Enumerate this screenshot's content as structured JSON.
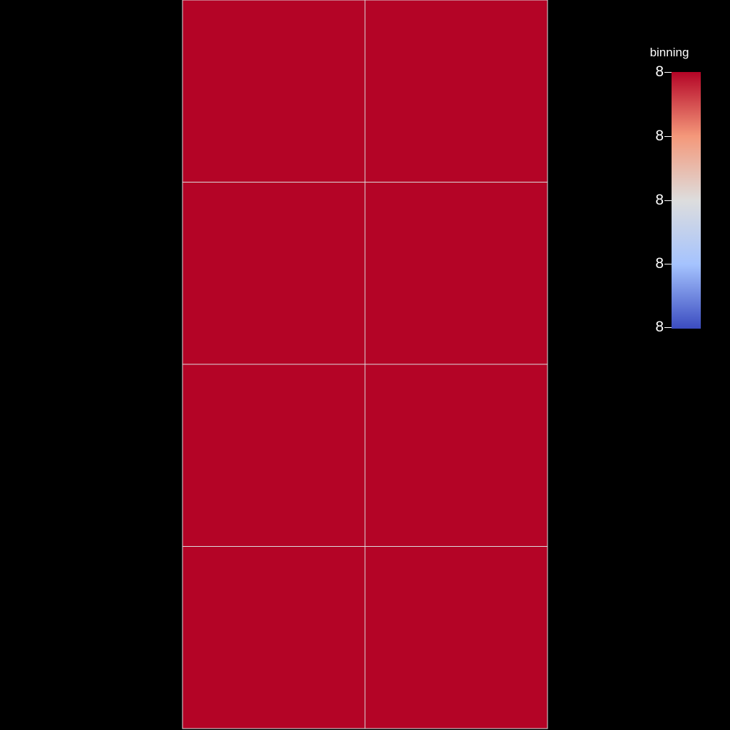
{
  "render": {
    "background": "#000000",
    "cell_color": "#b40426",
    "edge_color": "#dddddd",
    "rows": 4,
    "columns": 2
  },
  "scalar_bar": {
    "title": "binning",
    "tick_labels": [
      "8",
      "8",
      "8",
      "8",
      "8"
    ],
    "colormap": [
      "#b40426",
      "#f4987a",
      "#dddddd",
      "#a5c3fe",
      "#3b4cc0"
    ]
  }
}
